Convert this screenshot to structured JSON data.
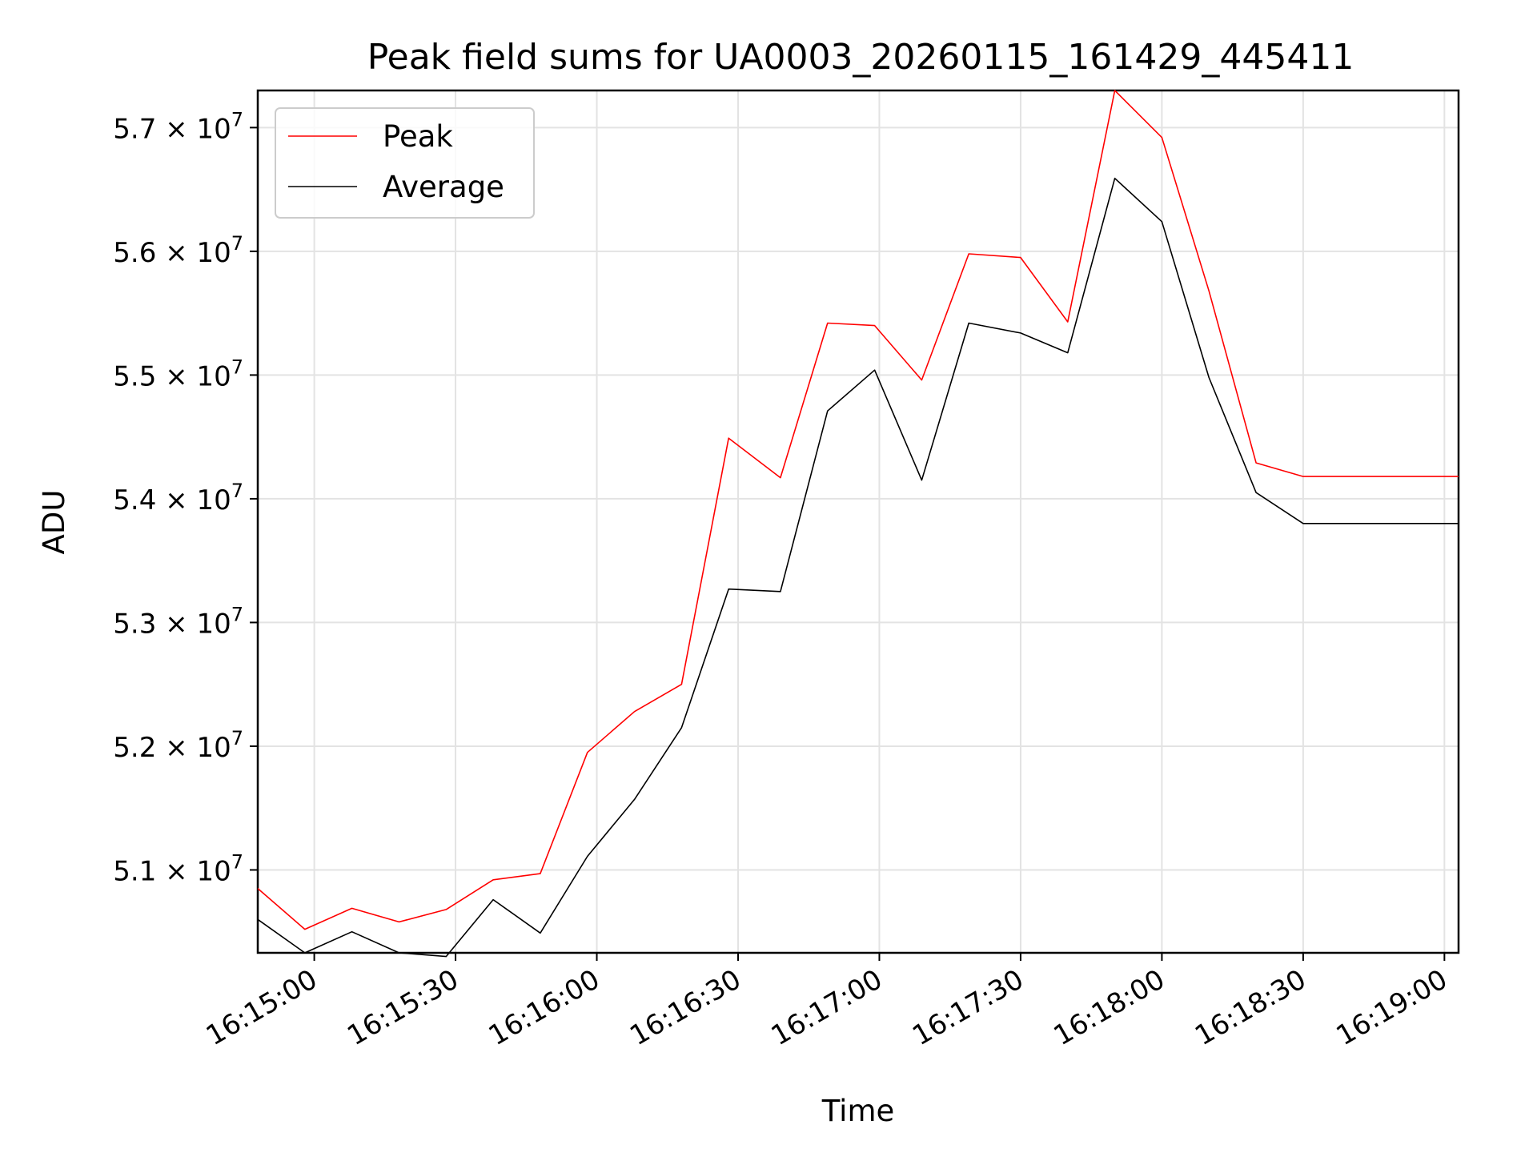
{
  "chart_data": {
    "type": "line",
    "title": "Peak field sums for UA0003_20260115_161429_445411",
    "xlabel": "Time",
    "ylabel": "ADU",
    "x_axis": {
      "kind": "time",
      "range": [
        "16:14:48",
        "16:19:03"
      ],
      "ticks": [
        "16:15:00",
        "16:15:30",
        "16:16:00",
        "16:16:30",
        "16:17:00",
        "16:17:30",
        "16:18:00",
        "16:18:30",
        "16:19:00"
      ]
    },
    "y_axis": {
      "range": [
        50330000,
        57300000
      ],
      "ticks": [
        {
          "value": 51000000,
          "mantissa": "5.1",
          "exponent": "7"
        },
        {
          "value": 52000000,
          "mantissa": "5.2",
          "exponent": "7"
        },
        {
          "value": 53000000,
          "mantissa": "5.3",
          "exponent": "7"
        },
        {
          "value": 54000000,
          "mantissa": "5.4",
          "exponent": "7"
        },
        {
          "value": 55000000,
          "mantissa": "5.5",
          "exponent": "7"
        },
        {
          "value": 56000000,
          "mantissa": "5.6",
          "exponent": "7"
        },
        {
          "value": 57000000,
          "mantissa": "5.7",
          "exponent": "7"
        }
      ]
    },
    "grid": true,
    "legend": {
      "position": "top-left"
    },
    "x": [
      "16:14:48",
      "16:14:58",
      "16:15:08",
      "16:15:18",
      "16:15:28",
      "16:15:38",
      "16:15:48",
      "16:15:58",
      "16:16:08",
      "16:16:18",
      "16:16:28",
      "16:16:39",
      "16:16:49",
      "16:16:59",
      "16:17:09",
      "16:17:19",
      "16:17:30",
      "16:17:40",
      "16:17:50",
      "16:18:00",
      "16:18:10",
      "16:18:20",
      "16:18:30",
      "16:18:40",
      "16:18:50",
      "16:19:00",
      "16:19:03"
    ],
    "series": [
      {
        "name": "Peak",
        "color": "#ff0000",
        "values": [
          50850000,
          50520000,
          50690000,
          50580000,
          50680000,
          50920000,
          50970000,
          51950000,
          52280000,
          52500000,
          54490000,
          54170000,
          55420000,
          55400000,
          54960000,
          55980000,
          55950000,
          55430000,
          57300000,
          56920000,
          55680000,
          54290000,
          54180000,
          54180000,
          54180000,
          54180000,
          54180000
        ]
      },
      {
        "name": "Average",
        "color": "#000000",
        "values": [
          50600000,
          50330000,
          50500000,
          50330000,
          50300000,
          50760000,
          50490000,
          51110000,
          51570000,
          52150000,
          53270000,
          53250000,
          54710000,
          55040000,
          54150000,
          55420000,
          55340000,
          55180000,
          56590000,
          56240000,
          54980000,
          54050000,
          53800000,
          53800000,
          53800000,
          53800000,
          53800000
        ]
      }
    ]
  }
}
